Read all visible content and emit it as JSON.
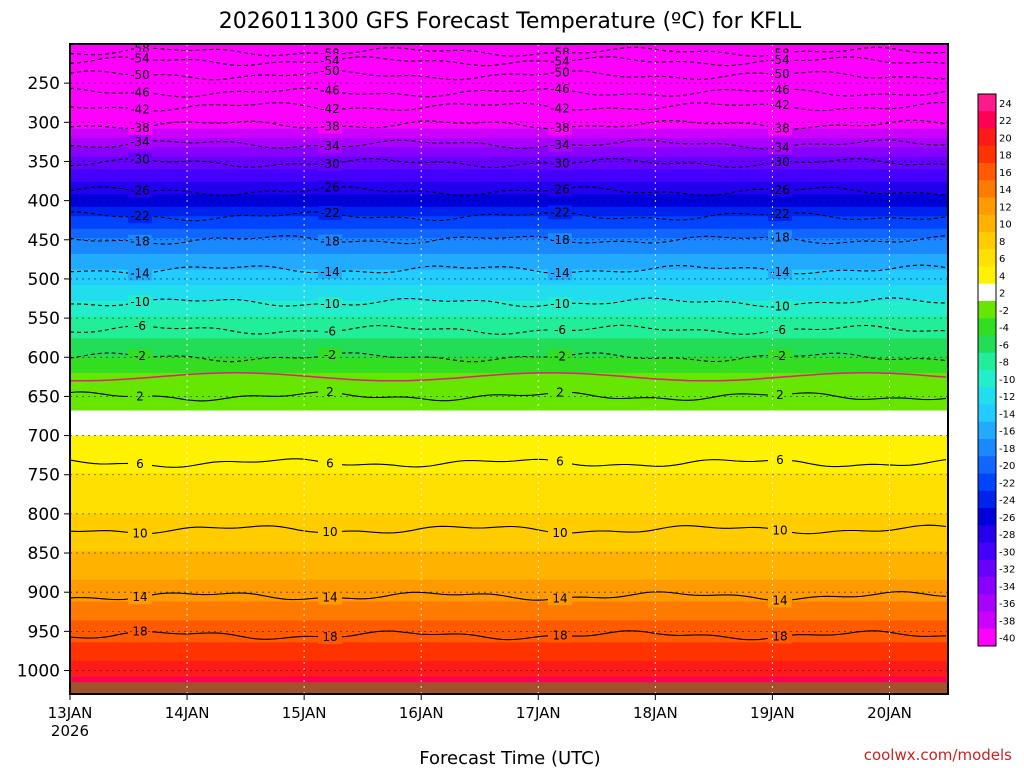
{
  "chart_data": {
    "type": "heatmap",
    "title": "2026011300 GFS Forecast Temperature (ºC) for KFLL",
    "xlabel": "Forecast Time (UTC)",
    "ylabel": "",
    "credit": "coolwx.com/models",
    "x_ticks": [
      {
        "label": "13JAN",
        "sub": "2026",
        "hours": 0
      },
      {
        "label": "14JAN",
        "sub": "",
        "hours": 24
      },
      {
        "label": "15JAN",
        "sub": "",
        "hours": 48
      },
      {
        "label": "16JAN",
        "sub": "",
        "hours": 72
      },
      {
        "label": "17JAN",
        "sub": "",
        "hours": 96
      },
      {
        "label": "18JAN",
        "sub": "",
        "hours": 120
      },
      {
        "label": "19JAN",
        "sub": "",
        "hours": 144
      },
      {
        "label": "20JAN",
        "sub": "",
        "hours": 168
      }
    ],
    "xlim_hours": [
      0,
      180
    ],
    "y_ticks": [
      250,
      300,
      350,
      400,
      450,
      500,
      550,
      600,
      650,
      700,
      750,
      800,
      850,
      900,
      950,
      1000
    ],
    "ylim_hPa": [
      1030,
      200
    ],
    "colorbar": {
      "levels": [
        24,
        22,
        20,
        18,
        16,
        14,
        12,
        10,
        8,
        6,
        4,
        2,
        -2,
        -4,
        -6,
        -8,
        -10,
        -12,
        -14,
        -16,
        -18,
        -20,
        -22,
        -24,
        -26,
        -28,
        -30,
        -32,
        -34,
        -36,
        -38,
        -40
      ],
      "colors": [
        "#ff1a8c",
        "#ff0055",
        "#ff1a1a",
        "#ff3300",
        "#ff5a00",
        "#ff7a00",
        "#ff9a00",
        "#ffb200",
        "#ffcc00",
        "#ffe000",
        "#fff200",
        "#ffffff",
        "#66e600",
        "#33dd22",
        "#22dd55",
        "#22ee99",
        "#22eecc",
        "#22ddee",
        "#22ccff",
        "#22aaff",
        "#1a88ff",
        "#1166ff",
        "#0044ff",
        "#0022ee",
        "#0000dd",
        "#2200ee",
        "#4400ff",
        "#6600ff",
        "#8800ff",
        "#aa00ff",
        "#cc00ff",
        "#ff00ff"
      ]
    },
    "profile": [
      {
        "p": 200,
        "t": -60
      },
      {
        "p": 250,
        "t": -50
      },
      {
        "p": 300,
        "t": -39
      },
      {
        "p": 350,
        "t": -31
      },
      {
        "p": 400,
        "t": -25
      },
      {
        "p": 450,
        "t": -18
      },
      {
        "p": 500,
        "t": -13
      },
      {
        "p": 550,
        "t": -8
      },
      {
        "p": 600,
        "t": -4
      },
      {
        "p": 650,
        "t": 1
      },
      {
        "p": 700,
        "t": 4
      },
      {
        "p": 750,
        "t": 6
      },
      {
        "p": 800,
        "t": 8
      },
      {
        "p": 850,
        "t": 10
      },
      {
        "p": 900,
        "t": 13
      },
      {
        "p": 950,
        "t": 17
      },
      {
        "p": 1000,
        "t": 21
      },
      {
        "p": 1030,
        "t": 24
      }
    ],
    "contours": [
      {
        "label": "-58",
        "p": 210
      },
      {
        "label": "-54",
        "p": 222
      },
      {
        "label": "-50",
        "p": 240
      },
      {
        "label": "-46",
        "p": 262
      },
      {
        "label": "-42",
        "p": 280
      },
      {
        "label": "-38",
        "p": 303
      },
      {
        "label": "-34",
        "p": 328
      },
      {
        "label": "-30",
        "p": 352
      },
      {
        "label": "-26",
        "p": 388
      },
      {
        "label": "-22",
        "p": 420
      },
      {
        "label": "-18",
        "p": 450
      },
      {
        "label": "-14",
        "p": 488
      },
      {
        "label": "-10",
        "p": 530
      },
      {
        "label": "-6",
        "p": 565
      },
      {
        "label": "-2",
        "p": 600
      },
      {
        "label": "2",
        "p": 650
      },
      {
        "label": "6",
        "p": 735
      },
      {
        "label": "10",
        "p": 820
      },
      {
        "label": "14",
        "p": 905
      },
      {
        "label": "18",
        "p": 955
      }
    ],
    "freezing_line_p": 625,
    "ground": {
      "color": "#a0522d",
      "p": 1015
    }
  }
}
